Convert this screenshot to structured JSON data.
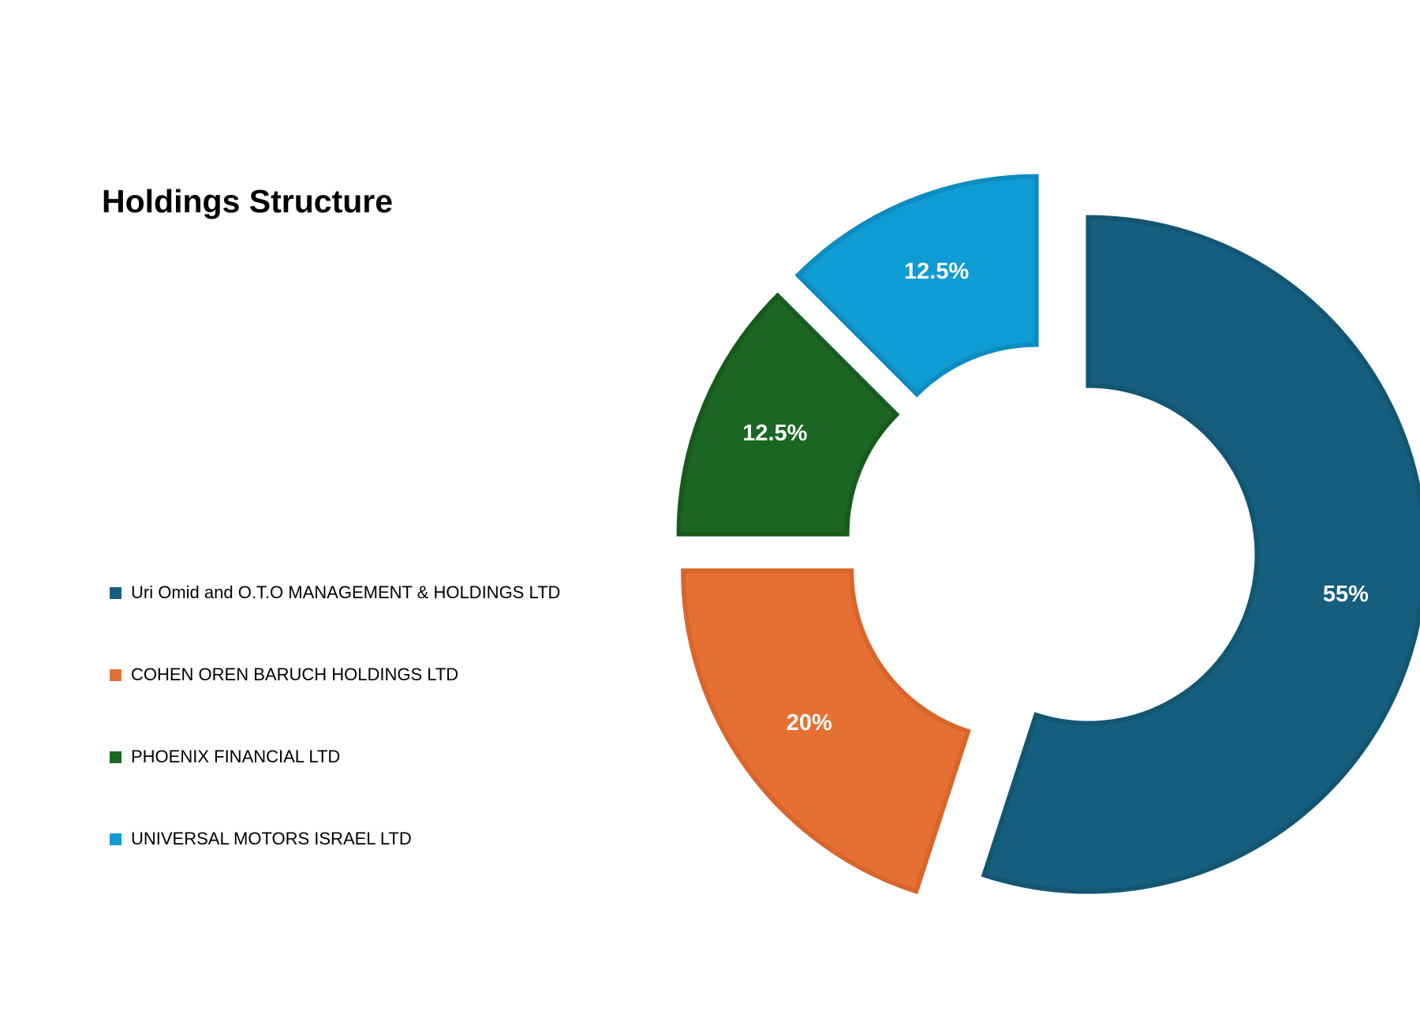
{
  "chart_data": {
    "type": "pie",
    "variant": "donut-exploded",
    "title": "Holdings Structure",
    "slices": [
      {
        "name": "Uri Omid and O.T.O MANAGEMENT & HOLDINGS LTD",
        "value": 55,
        "label": "55%",
        "color": "#155e7e",
        "stroke": "#135674"
      },
      {
        "name": "COHEN OREN BARUCH HOLDINGS LTD",
        "value": 20,
        "label": "20%",
        "color": "#e67033",
        "stroke": "#d9652b"
      },
      {
        "name": "PHOENIX FINANCIAL LTD",
        "value": 12.5,
        "label": "12.5%",
        "color": "#1b6622",
        "stroke": "#175a1e"
      },
      {
        "name": "UNIVERSAL MOTORS ISRAEL LTD",
        "value": 12.5,
        "label": "12.5%",
        "color": "#0f9bd3",
        "stroke": "#0c8cc0"
      }
    ],
    "legend_position": "left"
  }
}
